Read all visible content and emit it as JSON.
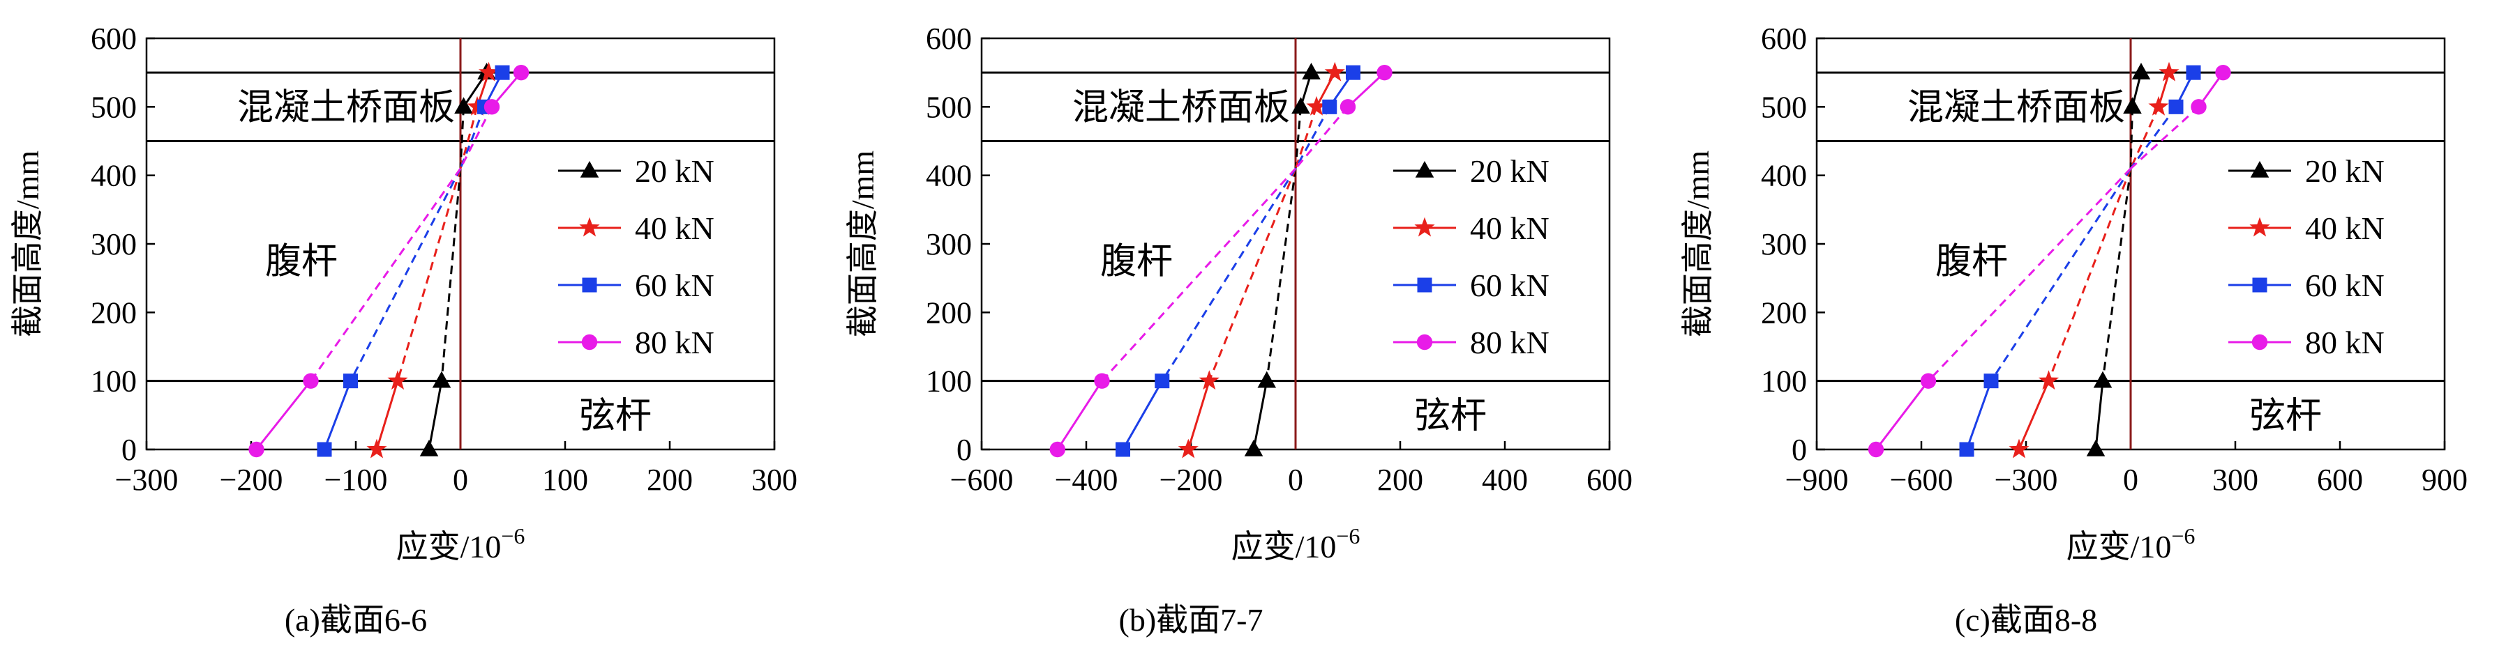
{
  "chart_data": [
    {
      "type": "line",
      "caption": "(a)截面6-6",
      "xlabel": "应变/10",
      "xlabel_exp": "−6",
      "ylabel": "截面高度/mm",
      "xlim": [
        -300,
        300
      ],
      "ylim": [
        0,
        600
      ],
      "xticks": [
        "−300",
        "−200",
        "−100",
        "0",
        "100",
        "200",
        "300"
      ],
      "yticks": [
        "0",
        "100",
        "200",
        "300",
        "400",
        "500",
        "600"
      ],
      "region_labels": {
        "deck": "混凝土桥面板",
        "web": "腹杆",
        "chord": "弦杆"
      },
      "boundaries_y": [
        550,
        450,
        100
      ],
      "legend_position": "right",
      "series": [
        {
          "name": "20 kN",
          "color": "#000000",
          "marker": "triangle",
          "points": [
            [
              25,
              550
            ],
            [
              3,
              500
            ],
            [
              -18,
              100
            ],
            [
              -30,
              0
            ]
          ]
        },
        {
          "name": "40 kN",
          "color": "#e8201b",
          "marker": "star",
          "points": [
            [
              27,
              550
            ],
            [
              16,
              500
            ],
            [
              -60,
              100
            ],
            [
              -80,
              0
            ]
          ]
        },
        {
          "name": "60 kN",
          "color": "#1b3fe8",
          "marker": "square",
          "points": [
            [
              40,
              550
            ],
            [
              23,
              500
            ],
            [
              -105,
              100
            ],
            [
              -130,
              0
            ]
          ]
        },
        {
          "name": "80 kN",
          "color": "#e81be8",
          "marker": "circle",
          "points": [
            [
              58,
              550
            ],
            [
              30,
              500
            ],
            [
              -143,
              100
            ],
            [
              -195,
              0
            ]
          ]
        }
      ]
    },
    {
      "type": "line",
      "caption": "(b)截面7-7",
      "xlabel": "应变/10",
      "xlabel_exp": "−6",
      "ylabel": "截面高度/mm",
      "xlim": [
        -600,
        600
      ],
      "ylim": [
        0,
        600
      ],
      "xticks": [
        "−600",
        "−400",
        "−200",
        "0",
        "200",
        "400",
        "600"
      ],
      "yticks": [
        "0",
        "100",
        "200",
        "300",
        "400",
        "500",
        "600"
      ],
      "region_labels": {
        "deck": "混凝土桥面板",
        "web": "腹杆",
        "chord": "弦杆"
      },
      "boundaries_y": [
        550,
        450,
        100
      ],
      "legend_position": "right",
      "series": [
        {
          "name": "20 kN",
          "color": "#000000",
          "marker": "triangle",
          "points": [
            [
              30,
              550
            ],
            [
              10,
              500
            ],
            [
              -55,
              100
            ],
            [
              -80,
              0
            ]
          ]
        },
        {
          "name": "40 kN",
          "color": "#e8201b",
          "marker": "star",
          "points": [
            [
              75,
              550
            ],
            [
              40,
              500
            ],
            [
              -165,
              100
            ],
            [
              -205,
              0
            ]
          ]
        },
        {
          "name": "60 kN",
          "color": "#1b3fe8",
          "marker": "square",
          "points": [
            [
              110,
              550
            ],
            [
              65,
              500
            ],
            [
              -255,
              100
            ],
            [
              -330,
              0
            ]
          ]
        },
        {
          "name": "80 kN",
          "color": "#e81be8",
          "marker": "circle",
          "points": [
            [
              170,
              550
            ],
            [
              100,
              500
            ],
            [
              -370,
              100
            ],
            [
              -455,
              0
            ]
          ]
        }
      ]
    },
    {
      "type": "line",
      "caption": "(c)截面8-8",
      "xlabel": "应变/10",
      "xlabel_exp": "−6",
      "ylabel": "截面高度/mm",
      "xlim": [
        -900,
        900
      ],
      "ylim": [
        0,
        600
      ],
      "xticks": [
        "−900",
        "−600",
        "−300",
        "0",
        "300",
        "600",
        "900"
      ],
      "yticks": [
        "0",
        "100",
        "200",
        "300",
        "400",
        "500",
        "600"
      ],
      "region_labels": {
        "deck": "混凝土桥面板",
        "web": "腹杆",
        "chord": "弦杆"
      },
      "boundaries_y": [
        550,
        450,
        100
      ],
      "legend_position": "right",
      "series": [
        {
          "name": "20 kN",
          "color": "#000000",
          "marker": "triangle",
          "points": [
            [
              30,
              550
            ],
            [
              5,
              500
            ],
            [
              -80,
              100
            ],
            [
              -100,
              0
            ]
          ]
        },
        {
          "name": "40 kN",
          "color": "#e8201b",
          "marker": "star",
          "points": [
            [
              110,
              550
            ],
            [
              80,
              500
            ],
            [
              -235,
              100
            ],
            [
              -320,
              0
            ]
          ]
        },
        {
          "name": "60 kN",
          "color": "#1b3fe8",
          "marker": "square",
          "points": [
            [
              180,
              550
            ],
            [
              130,
              500
            ],
            [
              -400,
              100
            ],
            [
              -470,
              0
            ]
          ]
        },
        {
          "name": "80 kN",
          "color": "#e81be8",
          "marker": "circle",
          "points": [
            [
              265,
              550
            ],
            [
              195,
              500
            ],
            [
              -580,
              100
            ],
            [
              -730,
              0
            ]
          ]
        }
      ]
    }
  ]
}
